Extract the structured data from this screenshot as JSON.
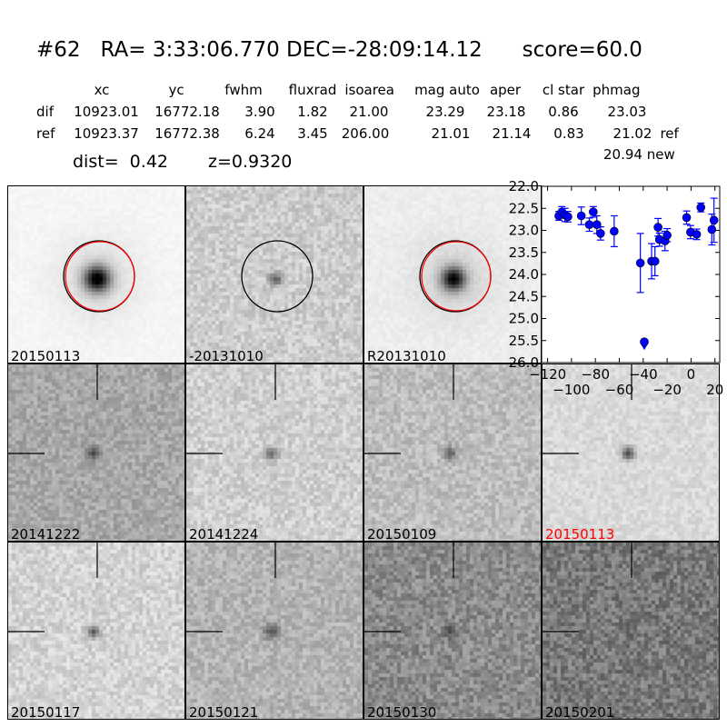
{
  "header": {
    "title": "#62   RA= 3:33:06.770 DEC=-28:09:14.12      score=60.0",
    "columns": [
      "xc",
      "yc",
      "fwhm",
      "fluxrad",
      "isoarea",
      "mag auto",
      "aper",
      "cl star",
      "phmag"
    ],
    "rows": [
      {
        "label": "dif",
        "values": [
          "10923.01",
          "16772.18",
          "3.90",
          "1.82",
          "21.00",
          "23.29",
          "23.18",
          "0.86",
          "23.03"
        ],
        "suffix": ""
      },
      {
        "label": "ref",
        "values": [
          "10923.37",
          "16772.38",
          "6.24",
          "3.45",
          "206.00",
          "21.01",
          "21.14",
          "0.83",
          "21.02"
        ],
        "suffix": "ref"
      }
    ],
    "extra_phmag": "20.94 new",
    "dist": "dist=  0.42",
    "z": "z=0.9320"
  },
  "stamps": [
    {
      "label": "20150113",
      "circle": [
        "#000000",
        "#ff0000"
      ]
    },
    {
      "label": "-20131010",
      "circle": [
        "#000000"
      ]
    },
    {
      "label": "R20131010",
      "circle": [
        "#000000",
        "#ff0000"
      ]
    },
    {
      "label": "20141222",
      "crosshair": true
    },
    {
      "label": "20141224",
      "crosshair": true
    },
    {
      "label": "20150109",
      "crosshair": true
    },
    {
      "label": "20150113",
      "crosshair": true,
      "label_color": "#ff0000"
    },
    {
      "label": "20150117",
      "crosshair": true
    },
    {
      "label": "20150121",
      "crosshair": true
    },
    {
      "label": "20150130",
      "crosshair": true
    },
    {
      "label": "20150201",
      "crosshair": true
    }
  ],
  "chart_data": {
    "type": "scatter",
    "xlim": [
      -125,
      24
    ],
    "ylim": [
      26.0,
      22.0
    ],
    "y_inverted": true,
    "xticks": [
      -120,
      -100,
      -80,
      -60,
      -40,
      -20,
      0,
      20
    ],
    "xtick_labels": [
      "−120",
      "−100",
      "−80",
      "−60",
      "−40",
      "−20",
      "0",
      "20"
    ],
    "yticks": [
      "22.0",
      "22.5",
      "23.0",
      "23.5",
      "24.0",
      "24.5",
      "25.0",
      "25.5",
      "26.0"
    ],
    "color": "#0000ff",
    "points": [
      {
        "x": -110.6,
        "y": 22.67,
        "err": 0.1
      },
      {
        "x": -108,
        "y": 22.58,
        "err": 0.12
      },
      {
        "x": -105.5,
        "y": 22.65,
        "err": 0.15
      },
      {
        "x": -103,
        "y": 22.69,
        "err": 0.12
      },
      {
        "x": -91.8,
        "y": 22.67,
        "err": 0.2
      },
      {
        "x": -85.1,
        "y": 22.87,
        "err": 0.15
      },
      {
        "x": -81.8,
        "y": 22.58,
        "err": 0.12
      },
      {
        "x": -78.8,
        "y": 22.87,
        "err": 0.2
      },
      {
        "x": -75.7,
        "y": 23.07,
        "err": 0.15
      },
      {
        "x": -64.3,
        "y": 23.02,
        "err": 0.35
      },
      {
        "x": -42.4,
        "y": 23.74,
        "err": 0.67
      },
      {
        "x": -39.1,
        "y": 25.53,
        "err": 0,
        "upper_limit": true
      },
      {
        "x": -33,
        "y": 23.7,
        "err": 0.4
      },
      {
        "x": -30.2,
        "y": 23.7,
        "err": 0.33
      },
      {
        "x": -27.6,
        "y": 22.93,
        "err": 0.2
      },
      {
        "x": -26.4,
        "y": 23.21,
        "err": 0.15
      },
      {
        "x": -21.8,
        "y": 23.24,
        "err": 0.22
      },
      {
        "x": -20,
        "y": 23.11,
        "err": 0.15
      },
      {
        "x": -3.7,
        "y": 22.71,
        "err": 0.15
      },
      {
        "x": -0.4,
        "y": 23.04,
        "err": 0.15
      },
      {
        "x": 4.7,
        "y": 23.09,
        "err": 0.12
      },
      {
        "x": 8.2,
        "y": 22.48,
        "err": 0.1
      },
      {
        "x": 17.4,
        "y": 22.98,
        "err": 0.35
      },
      {
        "x": 19.2,
        "y": 22.77,
        "err": 0.5
      }
    ]
  }
}
